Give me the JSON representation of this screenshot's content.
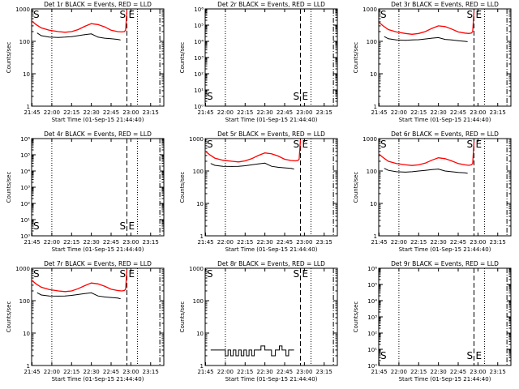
{
  "chart_data": [
    {
      "type": "line",
      "title": "Det 1r BLACK = Events, RED = LLD",
      "xlabel": "Start Time (01-Sep-15 21:44:40)",
      "ylabel": "Counts/sec",
      "x_ticks": [
        "21:45",
        "22:00",
        "22:15",
        "22:30",
        "22:45",
        "23:00",
        "23:15"
      ],
      "y_scale": "log",
      "ylim": [
        1,
        1000
      ],
      "y_ticks": [
        "1",
        "10",
        "100",
        "1000"
      ],
      "markers": {
        "S": "21:45",
        "E": "22:57"
      },
      "vlines": {
        "dotted": [
          "22:00",
          "23:05"
        ],
        "dashed": [
          "22:57"
        ],
        "dashdot": [
          "23:22"
        ]
      },
      "series": [
        {
          "color": "#000000",
          "x": [
            "21:49",
            "21:52",
            "21:58",
            "22:05",
            "22:10",
            "22:15",
            "22:20",
            "22:25",
            "22:30",
            "22:35",
            "22:40",
            "22:45",
            "22:50",
            "22:52"
          ],
          "values": [
            180,
            150,
            135,
            132,
            135,
            140,
            150,
            160,
            170,
            135,
            125,
            120,
            115,
            110
          ]
        },
        {
          "color": "#ff0000",
          "x": [
            "21:45",
            "21:48",
            "21:52",
            "21:58",
            "22:05",
            "22:10",
            "22:15",
            "22:20",
            "22:25",
            "22:30",
            "22:35",
            "22:40",
            "22:45",
            "22:50",
            "22:53",
            "22:55",
            "22:56",
            "22:57"
          ],
          "values": [
            420,
            330,
            260,
            220,
            200,
            190,
            200,
            230,
            290,
            350,
            330,
            280,
            220,
            200,
            195,
            200,
            220,
            900
          ]
        }
      ]
    },
    {
      "type": "line",
      "title": "Det 2r BLACK = Events, RED = LLD",
      "xlabel": "Start Time (01-Sep-15 21:44:40)",
      "ylabel": "Counts/sec",
      "x_ticks": [
        "21:45",
        "22:00",
        "22:15",
        "22:30",
        "22:45",
        "23:00",
        "23:15"
      ],
      "y_scale": "log",
      "ylim": [
        1,
        1000000
      ],
      "y_ticks": [
        "10⁰",
        "10¹",
        "10²",
        "10³",
        "10⁴",
        "10⁵",
        "10⁶"
      ],
      "markers": {
        "S": "21:45",
        "E": "22:57"
      },
      "vlines": {
        "dotted": [
          "22:00",
          "23:05"
        ],
        "dashed": [
          "22:57"
        ],
        "dashdot": [
          "23:22"
        ]
      },
      "series": []
    },
    {
      "type": "line",
      "title": "Det 3r BLACK = Events, RED = LLD",
      "xlabel": "Start Time (01-Sep-15 21:44:40)",
      "ylabel": "Counts/sec",
      "x_ticks": [
        "21:45",
        "22:00",
        "22:15",
        "22:30",
        "22:45",
        "23:00",
        "23:15"
      ],
      "y_scale": "log",
      "ylim": [
        1,
        1000
      ],
      "y_ticks": [
        "1",
        "10",
        "100",
        "1000"
      ],
      "markers": {
        "S": "21:45",
        "E": "22:57"
      },
      "vlines": {
        "dotted": [
          "22:00",
          "23:05"
        ],
        "dashed": [
          "22:57"
        ],
        "dashdot": [
          "23:22"
        ]
      },
      "series": [
        {
          "color": "#000000",
          "x": [
            "21:49",
            "21:52",
            "21:58",
            "22:05",
            "22:10",
            "22:15",
            "22:20",
            "22:25",
            "22:30",
            "22:35",
            "22:40",
            "22:45",
            "22:50",
            "22:52"
          ],
          "values": [
            140,
            120,
            110,
            108,
            110,
            112,
            118,
            125,
            130,
            115,
            110,
            105,
            100,
            98
          ]
        },
        {
          "color": "#ff0000",
          "x": [
            "21:45",
            "21:48",
            "21:52",
            "21:58",
            "22:05",
            "22:10",
            "22:15",
            "22:20",
            "22:25",
            "22:30",
            "22:35",
            "22:40",
            "22:45",
            "22:50",
            "22:53",
            "22:55",
            "22:56",
            "22:57"
          ],
          "values": [
            380,
            300,
            230,
            195,
            175,
            165,
            175,
            200,
            250,
            300,
            285,
            240,
            195,
            180,
            175,
            180,
            200,
            850
          ]
        }
      ]
    },
    {
      "type": "line",
      "title": "Det 4r BLACK = Events, RED = LLD",
      "xlabel": "Start Time (01-Sep-15 21:44:40)",
      "ylabel": "Counts/sec",
      "x_ticks": [
        "21:45",
        "22:00",
        "22:15",
        "22:30",
        "22:45",
        "23:00",
        "23:15"
      ],
      "y_scale": "log",
      "ylim": [
        1,
        1000000
      ],
      "y_ticks": [
        "10⁰",
        "10¹",
        "10²",
        "10³",
        "10⁴",
        "10⁵",
        "10⁶"
      ],
      "markers": {
        "S": "21:45",
        "E": "22:57"
      },
      "vlines": {
        "dotted": [
          "22:00",
          "23:05"
        ],
        "dashed": [
          "22:57"
        ],
        "dashdot": [
          "23:22"
        ]
      },
      "series": []
    },
    {
      "type": "line",
      "title": "Det 5r BLACK = Events, RED = LLD",
      "xlabel": "Start Time (01-Sep-15 21:44:40)",
      "ylabel": "Counts/sec",
      "x_ticks": [
        "21:45",
        "22:00",
        "22:15",
        "22:30",
        "22:45",
        "23:00",
        "23:15"
      ],
      "y_scale": "log",
      "ylim": [
        1,
        1000
      ],
      "y_ticks": [
        "1",
        "10",
        "100",
        "1000"
      ],
      "markers": {
        "S": "21:45",
        "E": "22:57"
      },
      "vlines": {
        "dotted": [
          "22:00",
          "23:05"
        ],
        "dashed": [
          "22:57"
        ],
        "dashdot": [
          "23:22"
        ]
      },
      "series": [
        {
          "color": "#000000",
          "x": [
            "21:49",
            "21:52",
            "21:58",
            "22:05",
            "22:10",
            "22:15",
            "22:20",
            "22:25",
            "22:30",
            "22:35",
            "22:40",
            "22:45",
            "22:50",
            "22:52"
          ],
          "values": [
            170,
            150,
            140,
            138,
            140,
            145,
            155,
            165,
            175,
            140,
            130,
            125,
            120,
            115
          ]
        },
        {
          "color": "#ff0000",
          "x": [
            "21:45",
            "21:48",
            "21:52",
            "21:58",
            "22:05",
            "22:10",
            "22:15",
            "22:20",
            "22:25",
            "22:30",
            "22:35",
            "22:40",
            "22:45",
            "22:50",
            "22:53",
            "22:55",
            "22:56",
            "22:57"
          ],
          "values": [
            400,
            320,
            250,
            215,
            200,
            190,
            205,
            240,
            300,
            360,
            340,
            290,
            230,
            210,
            205,
            210,
            230,
            900
          ]
        }
      ]
    },
    {
      "type": "line",
      "title": "Det 6r BLACK = Events, RED = LLD",
      "xlabel": "Start Time (01-Sep-15 21:44:40)",
      "ylabel": "Counts/sec",
      "x_ticks": [
        "21:45",
        "22:00",
        "22:15",
        "22:30",
        "22:45",
        "23:00",
        "23:15"
      ],
      "y_scale": "log",
      "ylim": [
        1,
        1000
      ],
      "y_ticks": [
        "1",
        "10",
        "100",
        "1000"
      ],
      "markers": {
        "S": "21:45",
        "E": "22:57"
      },
      "vlines": {
        "dotted": [
          "22:00",
          "23:05"
        ],
        "dashed": [
          "22:57"
        ],
        "dashdot": [
          "23:22"
        ]
      },
      "series": [
        {
          "color": "#000000",
          "x": [
            "21:49",
            "21:52",
            "21:58",
            "22:05",
            "22:10",
            "22:15",
            "22:20",
            "22:25",
            "22:30",
            "22:35",
            "22:40",
            "22:45",
            "22:50",
            "22:52"
          ],
          "values": [
            120,
            105,
            95,
            92,
            95,
            100,
            105,
            110,
            115,
            100,
            95,
            90,
            88,
            85
          ]
        },
        {
          "color": "#ff0000",
          "x": [
            "21:45",
            "21:48",
            "21:52",
            "21:58",
            "22:05",
            "22:10",
            "22:15",
            "22:20",
            "22:25",
            "22:30",
            "22:35",
            "22:40",
            "22:45",
            "22:50",
            "22:53",
            "22:55",
            "22:56",
            "22:57"
          ],
          "values": [
            330,
            260,
            200,
            170,
            155,
            148,
            155,
            175,
            215,
            255,
            240,
            205,
            170,
            155,
            150,
            155,
            170,
            800
          ]
        }
      ]
    },
    {
      "type": "line",
      "title": "Det 7r BLACK = Events, RED = LLD",
      "xlabel": "Start Time (01-Sep-15 21:44:40)",
      "ylabel": "Counts/sec",
      "x_ticks": [
        "21:45",
        "22:00",
        "22:15",
        "22:30",
        "22:45",
        "23:00",
        "23:15"
      ],
      "y_scale": "log",
      "ylim": [
        1,
        1000
      ],
      "y_ticks": [
        "1",
        "10",
        "100",
        "1000"
      ],
      "markers": {
        "S": "21:45",
        "E": "22:57"
      },
      "vlines": {
        "dotted": [
          "22:00",
          "23:05"
        ],
        "dashed": [
          "22:57"
        ],
        "dashdot": [
          "23:22"
        ]
      },
      "series": [
        {
          "color": "#000000",
          "x": [
            "21:49",
            "21:52",
            "21:58",
            "22:05",
            "22:10",
            "22:15",
            "22:20",
            "22:25",
            "22:30",
            "22:35",
            "22:40",
            "22:45",
            "22:50",
            "22:52"
          ],
          "values": [
            175,
            150,
            140,
            138,
            140,
            145,
            155,
            165,
            175,
            140,
            130,
            125,
            120,
            115
          ]
        },
        {
          "color": "#ff0000",
          "x": [
            "21:45",
            "21:48",
            "21:52",
            "21:58",
            "22:05",
            "22:10",
            "22:15",
            "22:20",
            "22:25",
            "22:30",
            "22:35",
            "22:40",
            "22:45",
            "22:50",
            "22:53",
            "22:55",
            "22:56",
            "22:57"
          ],
          "values": [
            420,
            330,
            260,
            220,
            200,
            190,
            200,
            235,
            290,
            350,
            330,
            280,
            225,
            205,
            200,
            205,
            225,
            900
          ]
        }
      ]
    },
    {
      "type": "line",
      "title": "Det 8r BLACK = Events, RED = LLD",
      "xlabel": "Start Time (01-Sep-15 21:44:40)",
      "ylabel": "Counts/sec",
      "x_ticks": [
        "21:45",
        "22:00",
        "22:15",
        "22:30",
        "22:45",
        "23:00",
        "23:15"
      ],
      "y_scale": "log",
      "ylim": [
        1,
        1000
      ],
      "y_ticks": [
        "1",
        "10",
        "100",
        "1000"
      ],
      "markers": {
        "S": "21:45",
        "E": "22:57"
      },
      "vlines": {
        "dotted": [
          "22:00",
          "23:05"
        ],
        "dashed": [
          "22:57"
        ],
        "dashdot": [
          "23:22"
        ]
      },
      "series": [
        {
          "color": "#000000",
          "steps": true,
          "x": [
            "21:49",
            "22:00",
            "22:00",
            "22:02",
            "22:02",
            "22:04",
            "22:04",
            "22:06",
            "22:06",
            "22:08",
            "22:08",
            "22:10",
            "22:10",
            "22:12",
            "22:12",
            "22:14",
            "22:14",
            "22:16",
            "22:16",
            "22:18",
            "22:18",
            "22:20",
            "22:20",
            "22:22",
            "22:22",
            "22:25",
            "22:25",
            "22:27",
            "22:27",
            "22:30",
            "22:30",
            "22:33",
            "22:33",
            "22:35",
            "22:35",
            "22:38",
            "22:38",
            "22:41",
            "22:41",
            "22:43",
            "22:43",
            "22:46",
            "22:46",
            "22:48",
            "22:48",
            "22:50",
            "22:50",
            "22:52"
          ],
          "values": [
            3,
            3,
            2,
            2,
            3,
            3,
            2,
            2,
            3,
            3,
            2,
            2,
            3,
            3,
            2,
            2,
            3,
            3,
            2,
            2,
            3,
            3,
            2,
            2,
            3,
            3,
            3,
            3,
            4,
            4,
            3,
            3,
            3,
            3,
            2,
            2,
            3,
            3,
            4,
            4,
            3,
            3,
            2,
            2,
            3,
            3,
            3,
            3
          ]
        }
      ]
    },
    {
      "type": "line",
      "title": "Det 9r BLACK = Events, RED = LLD",
      "xlabel": "Start Time (01-Sep-15 21:44:40)",
      "ylabel": "Counts/sec",
      "x_ticks": [
        "21:45",
        "22:00",
        "22:15",
        "22:30",
        "22:45",
        "23:00",
        "23:15"
      ],
      "y_scale": "log",
      "ylim": [
        1,
        1000000
      ],
      "y_ticks": [
        "10⁰",
        "10¹",
        "10²",
        "10³",
        "10⁴",
        "10⁵",
        "10⁶"
      ],
      "markers": {
        "S": "21:45",
        "E": "22:57"
      },
      "vlines": {
        "dotted": [
          "22:00",
          "23:05"
        ],
        "dashed": [
          "22:57"
        ],
        "dashdot": [
          "23:22"
        ]
      },
      "series": []
    }
  ]
}
